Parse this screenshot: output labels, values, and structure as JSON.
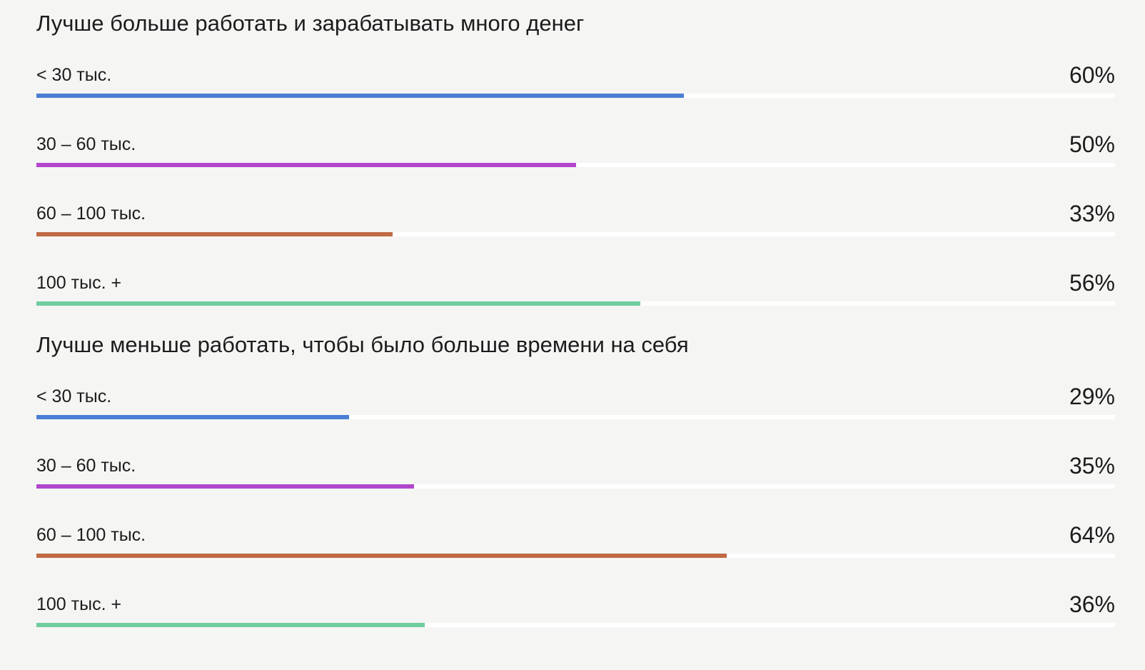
{
  "chart_data": {
    "type": "bar",
    "orientation": "horizontal",
    "xlim": [
      0,
      100
    ],
    "unit": "%",
    "groups": [
      {
        "title": "Лучше больше работать и зарабатывать много денег",
        "rows": [
          {
            "label": "< 30 тыс.",
            "value": 60,
            "value_label": "60%",
            "color": "#4a7fd4"
          },
          {
            "label": "30 – 60 тыс.",
            "value": 50,
            "value_label": "50%",
            "color": "#b246cc"
          },
          {
            "label": "60 – 100 тыс.",
            "value": 33,
            "value_label": "33%",
            "color": "#c06a45"
          },
          {
            "label": "100 тыс. +",
            "value": 56,
            "value_label": "56%",
            "color": "#6fcda0"
          }
        ]
      },
      {
        "title": "Лучше меньше работать, чтобы было больше времени на себя",
        "rows": [
          {
            "label": "< 30 тыс.",
            "value": 29,
            "value_label": "29%",
            "color": "#4a7fd4"
          },
          {
            "label": "30 – 60 тыс.",
            "value": 35,
            "value_label": "35%",
            "color": "#b246cc"
          },
          {
            "label": "60 – 100 тыс.",
            "value": 64,
            "value_label": "64%",
            "color": "#c06a45"
          },
          {
            "label": "100 тыс. +",
            "value": 36,
            "value_label": "36%",
            "color": "#6fcda0"
          }
        ]
      }
    ]
  }
}
